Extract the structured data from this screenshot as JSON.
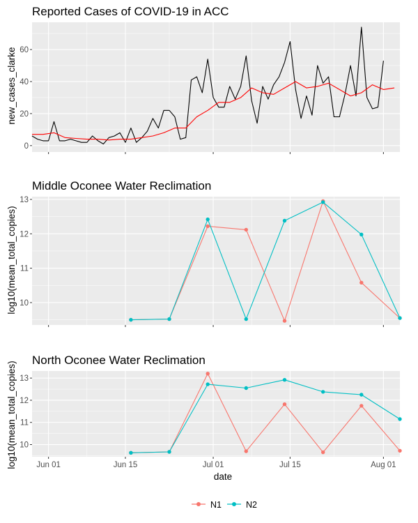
{
  "colors": {
    "panel_bg": "#EBEBEB",
    "grid": "#FFFFFF",
    "N1": "#F8766D",
    "N2": "#00BFC4",
    "cases": "#000000",
    "avg": "#FF0000"
  },
  "x_axis": {
    "label": "date",
    "start": "2020-05-29",
    "end": "2020-08-04",
    "ticks": [
      {
        "date": "2020-06-01",
        "label": "Jun 01"
      },
      {
        "date": "2020-06-15",
        "label": "Jun 15"
      },
      {
        "date": "2020-07-01",
        "label": "Jul 01"
      },
      {
        "date": "2020-07-15",
        "label": "Jul 15"
      },
      {
        "date": "2020-08-01",
        "label": "Aug 01"
      }
    ]
  },
  "legend": {
    "position": "bottom",
    "items": [
      {
        "key": "N1",
        "label": "N1"
      },
      {
        "key": "N2",
        "label": "N2"
      }
    ]
  },
  "chart_data": [
    {
      "type": "line",
      "title": "Reported Cases of COVID-19 in ACC",
      "ylabel": "new_cases_clarke",
      "ylim": [
        -4,
        77
      ],
      "yticks": [
        0,
        20,
        40,
        60
      ],
      "grid": true,
      "series": [
        {
          "key": "cases",
          "values": [
            [
              "2020-05-29",
              6
            ],
            [
              "2020-05-30",
              4
            ],
            [
              "2020-05-31",
              3
            ],
            [
              "2020-06-01",
              3
            ],
            [
              "2020-06-02",
              15
            ],
            [
              "2020-06-03",
              3
            ],
            [
              "2020-06-04",
              3
            ],
            [
              "2020-06-05",
              4
            ],
            [
              "2020-06-06",
              3
            ],
            [
              "2020-06-07",
              2
            ],
            [
              "2020-06-08",
              2
            ],
            [
              "2020-06-09",
              6
            ],
            [
              "2020-06-10",
              3
            ],
            [
              "2020-06-11",
              1
            ],
            [
              "2020-06-12",
              5
            ],
            [
              "2020-06-13",
              6
            ],
            [
              "2020-06-14",
              8
            ],
            [
              "2020-06-15",
              2
            ],
            [
              "2020-06-16",
              11
            ],
            [
              "2020-06-17",
              2
            ],
            [
              "2020-06-18",
              5
            ],
            [
              "2020-06-19",
              9
            ],
            [
              "2020-06-20",
              17
            ],
            [
              "2020-06-21",
              11
            ],
            [
              "2020-06-22",
              22
            ],
            [
              "2020-06-23",
              22
            ],
            [
              "2020-06-24",
              18
            ],
            [
              "2020-06-25",
              4
            ],
            [
              "2020-06-26",
              5
            ],
            [
              "2020-06-27",
              41
            ],
            [
              "2020-06-28",
              43
            ],
            [
              "2020-06-29",
              33
            ],
            [
              "2020-06-30",
              54
            ],
            [
              "2020-07-01",
              30
            ],
            [
              "2020-07-02",
              24
            ],
            [
              "2020-07-03",
              24
            ],
            [
              "2020-07-04",
              37
            ],
            [
              "2020-07-05",
              29
            ],
            [
              "2020-07-06",
              37
            ],
            [
              "2020-07-07",
              56
            ],
            [
              "2020-07-08",
              28
            ],
            [
              "2020-07-09",
              14
            ],
            [
              "2020-07-10",
              37
            ],
            [
              "2020-07-11",
              29
            ],
            [
              "2020-07-12",
              38
            ],
            [
              "2020-07-13",
              43
            ],
            [
              "2020-07-14",
              52
            ],
            [
              "2020-07-15",
              65
            ],
            [
              "2020-07-16",
              35
            ],
            [
              "2020-07-17",
              17
            ],
            [
              "2020-07-18",
              31
            ],
            [
              "2020-07-19",
              19
            ],
            [
              "2020-07-20",
              50
            ],
            [
              "2020-07-21",
              39
            ],
            [
              "2020-07-22",
              43
            ],
            [
              "2020-07-23",
              18
            ],
            [
              "2020-07-24",
              18
            ],
            [
              "2020-07-25",
              32
            ],
            [
              "2020-07-26",
              50
            ],
            [
              "2020-07-27",
              31
            ],
            [
              "2020-07-28",
              74
            ],
            [
              "2020-07-29",
              30
            ],
            [
              "2020-07-30",
              23
            ],
            [
              "2020-07-31",
              24
            ],
            [
              "2020-08-01",
              53
            ]
          ]
        },
        {
          "key": "avg",
          "values": [
            [
              "2020-05-29",
              7
            ],
            [
              "2020-05-31",
              7
            ],
            [
              "2020-06-02",
              8
            ],
            [
              "2020-06-04",
              5
            ],
            [
              "2020-06-06",
              4.5
            ],
            [
              "2020-06-08",
              4
            ],
            [
              "2020-06-10",
              4
            ],
            [
              "2020-06-12",
              3.5
            ],
            [
              "2020-06-14",
              4
            ],
            [
              "2020-06-16",
              4
            ],
            [
              "2020-06-18",
              5
            ],
            [
              "2020-06-20",
              6
            ],
            [
              "2020-06-22",
              8
            ],
            [
              "2020-06-24",
              11
            ],
            [
              "2020-06-26",
              11
            ],
            [
              "2020-06-28",
              18
            ],
            [
              "2020-06-30",
              22
            ],
            [
              "2020-07-02",
              27
            ],
            [
              "2020-07-04",
              27
            ],
            [
              "2020-07-06",
              30
            ],
            [
              "2020-07-08",
              36
            ],
            [
              "2020-07-10",
              33
            ],
            [
              "2020-07-12",
              32
            ],
            [
              "2020-07-14",
              36
            ],
            [
              "2020-07-16",
              40
            ],
            [
              "2020-07-18",
              36
            ],
            [
              "2020-07-20",
              37
            ],
            [
              "2020-07-22",
              39
            ],
            [
              "2020-07-24",
              35
            ],
            [
              "2020-07-26",
              31
            ],
            [
              "2020-07-28",
              33
            ],
            [
              "2020-07-30",
              38
            ],
            [
              "2020-08-01",
              35
            ],
            [
              "2020-08-03",
              36
            ]
          ]
        }
      ]
    },
    {
      "type": "line",
      "title": "Middle Oconee Water Reclimation",
      "ylabel": "log10(mean_total_copies)",
      "ylim": [
        9.35,
        13.08
      ],
      "yticks": [
        10,
        11,
        12,
        13
      ],
      "grid": true,
      "series": [
        {
          "name": "N1",
          "values": [
            [
              "2020-06-16",
              9.5
            ],
            [
              "2020-06-23",
              9.52
            ],
            [
              "2020-06-30",
              12.22
            ],
            [
              "2020-07-07",
              12.12
            ],
            [
              "2020-07-14",
              9.47
            ],
            [
              "2020-07-21",
              12.95
            ],
            [
              "2020-07-28",
              10.58
            ],
            [
              "2020-08-04",
              9.55
            ]
          ]
        },
        {
          "name": "N2",
          "values": [
            [
              "2020-06-16",
              9.5
            ],
            [
              "2020-06-23",
              9.52
            ],
            [
              "2020-06-30",
              12.42
            ],
            [
              "2020-07-07",
              9.52
            ],
            [
              "2020-07-14",
              12.38
            ],
            [
              "2020-07-21",
              12.92
            ],
            [
              "2020-07-28",
              11.98
            ],
            [
              "2020-08-04",
              9.55
            ]
          ]
        }
      ]
    },
    {
      "type": "line",
      "title": "North Oconee Water Reclimation",
      "ylabel": "log10(mean_total_copies)",
      "ylim": [
        9.45,
        13.32
      ],
      "yticks": [
        10,
        11,
        12,
        13
      ],
      "grid": true,
      "series": [
        {
          "name": "N1",
          "values": [
            [
              "2020-06-16",
              9.63
            ],
            [
              "2020-06-23",
              9.67
            ],
            [
              "2020-06-30",
              13.2
            ],
            [
              "2020-07-07",
              9.7
            ],
            [
              "2020-07-14",
              11.82
            ],
            [
              "2020-07-21",
              9.65
            ],
            [
              "2020-07-28",
              11.75
            ],
            [
              "2020-08-04",
              9.72
            ]
          ]
        },
        {
          "name": "N2",
          "values": [
            [
              "2020-06-16",
              9.63
            ],
            [
              "2020-06-23",
              9.67
            ],
            [
              "2020-06-30",
              12.72
            ],
            [
              "2020-07-07",
              12.55
            ],
            [
              "2020-07-14",
              12.92
            ],
            [
              "2020-07-21",
              12.38
            ],
            [
              "2020-07-28",
              12.25
            ],
            [
              "2020-08-04",
              11.15
            ]
          ]
        }
      ]
    }
  ]
}
